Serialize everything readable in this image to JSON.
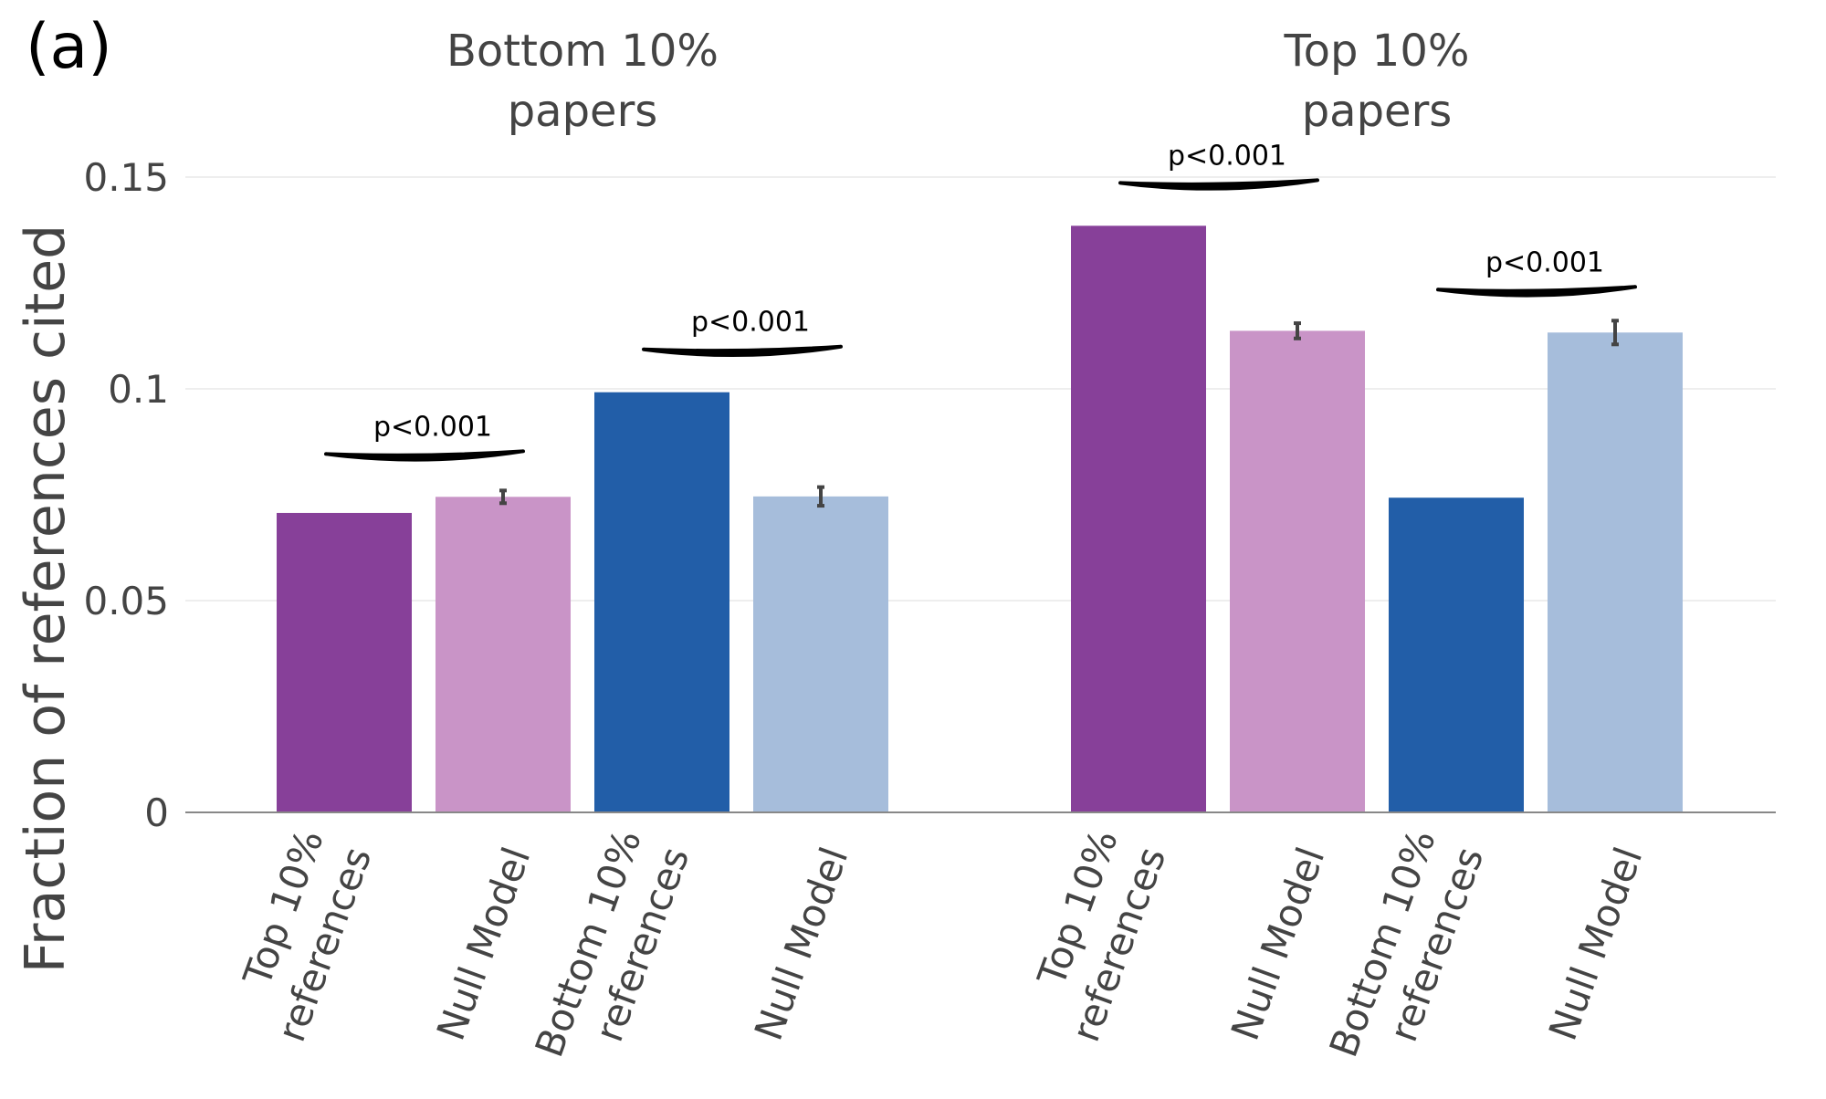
{
  "panel_label": "(a)",
  "chart_data": {
    "type": "bar",
    "ylabel": "Fraction of references cited",
    "xlabel": "",
    "ylim": [
      0,
      0.15
    ],
    "yticks": [
      {
        "value": 0,
        "label": "0"
      },
      {
        "value": 0.05,
        "label": "0.05"
      },
      {
        "value": 0.1,
        "label": "0.1"
      },
      {
        "value": 0.15,
        "label": "0.15"
      }
    ],
    "grid": true,
    "legend": "none",
    "colors": {
      "top_refs": "#874099",
      "null_top": "#c994c7",
      "bottom_refs": "#225ea8",
      "null_bottom": "#a6bddb",
      "axis": "#888888",
      "grid": "#eeeeee",
      "text": "#444444",
      "annotation": "#000000",
      "errorbar": "#444444"
    },
    "groups": [
      {
        "title_lines": [
          "Bottom 10%",
          "papers"
        ],
        "bars": [
          {
            "label_lines": [
              "Top 10%",
              "references"
            ],
            "value": 0.0707,
            "error": null,
            "color_key": "top_refs"
          },
          {
            "label_lines": [
              "Null Model"
            ],
            "value": 0.0745,
            "error": 0.0015,
            "color_key": "null_top"
          },
          {
            "label_lines": [
              "Bottom 10%",
              "references"
            ],
            "value": 0.0992,
            "error": null,
            "color_key": "bottom_refs"
          },
          {
            "label_lines": [
              "Null Model"
            ],
            "value": 0.0746,
            "error": 0.0022,
            "color_key": "null_bottom"
          }
        ],
        "annotations": [
          {
            "text": "p<0.001",
            "bars": [
              0,
              1
            ]
          },
          {
            "text": "p<0.001",
            "bars": [
              2,
              3
            ]
          }
        ]
      },
      {
        "title_lines": [
          "Top 10%",
          "papers"
        ],
        "bars": [
          {
            "label_lines": [
              "Top 10%",
              "references"
            ],
            "value": 0.1385,
            "error": null,
            "color_key": "top_refs"
          },
          {
            "label_lines": [
              "Null Model"
            ],
            "value": 0.1137,
            "error": 0.0018,
            "color_key": "null_top"
          },
          {
            "label_lines": [
              "Bottom 10%",
              "references"
            ],
            "value": 0.0743,
            "error": null,
            "color_key": "bottom_refs"
          },
          {
            "label_lines": [
              "Null Model"
            ],
            "value": 0.1133,
            "error": 0.0028,
            "color_key": "null_bottom"
          }
        ],
        "annotations": [
          {
            "text": "p<0.001",
            "bars": [
              0,
              1
            ]
          },
          {
            "text": "p<0.001",
            "bars": [
              2,
              3
            ]
          }
        ]
      }
    ]
  }
}
